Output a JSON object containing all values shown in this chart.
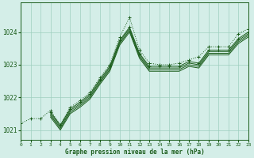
{
  "bg_color": "#d4eee8",
  "grid_color": "#9ecfbf",
  "line_color": "#1a5c1a",
  "xlabel": "Graphe pression niveau de la mer (hPa)",
  "xlim": [
    0,
    23
  ],
  "ylim": [
    1020.7,
    1024.9
  ],
  "yticks": [
    1021,
    1022,
    1023,
    1024
  ],
  "xticks": [
    0,
    1,
    2,
    3,
    4,
    5,
    6,
    7,
    8,
    9,
    10,
    11,
    12,
    13,
    14,
    15,
    16,
    17,
    18,
    19,
    20,
    21,
    22,
    23
  ],
  "series": [
    {
      "x": [
        0,
        1,
        2,
        3,
        4,
        5,
        6,
        7,
        8,
        9,
        10,
        11,
        12,
        13,
        14,
        15,
        16,
        17,
        18,
        19,
        20,
        21,
        22,
        23
      ],
      "y": [
        1021.2,
        1021.35,
        1021.35,
        1021.6,
        1021.15,
        1021.7,
        1021.9,
        1022.15,
        1022.6,
        1023.0,
        1023.85,
        1024.45,
        1023.45,
        1023.05,
        1023.0,
        1023.0,
        1023.05,
        1023.15,
        1023.25,
        1023.55,
        1023.55,
        1023.55,
        1023.95,
        1024.1
      ],
      "style": "dotted",
      "marker": "+"
    },
    {
      "x": [
        3,
        4,
        5,
        6,
        7,
        8,
        9,
        10,
        11,
        12,
        13,
        14,
        15,
        16,
        17,
        18,
        19,
        20,
        21,
        22,
        23
      ],
      "y": [
        1021.55,
        1021.15,
        1021.65,
        1021.85,
        1022.1,
        1022.55,
        1022.95,
        1023.75,
        1024.15,
        1023.35,
        1022.95,
        1022.95,
        1022.95,
        1022.95,
        1023.1,
        1023.05,
        1023.45,
        1023.45,
        1023.45,
        1023.8,
        1024.0
      ],
      "style": "solid",
      "marker": "+"
    },
    {
      "x": [
        3,
        4,
        5,
        6,
        7,
        8,
        9,
        10,
        11,
        12,
        13,
        14,
        15,
        16,
        17,
        18,
        19,
        20,
        21,
        22,
        23
      ],
      "y": [
        1021.5,
        1021.1,
        1021.6,
        1021.8,
        1022.05,
        1022.5,
        1022.9,
        1023.7,
        1024.1,
        1023.3,
        1022.9,
        1022.9,
        1022.9,
        1022.9,
        1023.05,
        1023.0,
        1023.4,
        1023.4,
        1023.4,
        1023.75,
        1023.95
      ],
      "style": "solid",
      "marker": null
    },
    {
      "x": [
        3,
        4,
        5,
        6,
        7,
        8,
        9,
        10,
        11,
        12,
        13,
        14,
        15,
        16,
        17,
        18,
        19,
        20,
        21,
        22,
        23
      ],
      "y": [
        1021.45,
        1021.05,
        1021.55,
        1021.75,
        1022.0,
        1022.45,
        1022.85,
        1023.65,
        1024.05,
        1023.25,
        1022.85,
        1022.85,
        1022.85,
        1022.85,
        1023.0,
        1022.95,
        1023.35,
        1023.35,
        1023.35,
        1023.7,
        1023.9
      ],
      "style": "solid",
      "marker": null
    },
    {
      "x": [
        3,
        4,
        5,
        6,
        7,
        8,
        9,
        10,
        11,
        12,
        13,
        14,
        15,
        16,
        17,
        18,
        19,
        20,
        21,
        22,
        23
      ],
      "y": [
        1021.4,
        1021.0,
        1021.5,
        1021.7,
        1021.95,
        1022.4,
        1022.8,
        1023.6,
        1024.0,
        1023.2,
        1022.8,
        1022.8,
        1022.8,
        1022.8,
        1022.95,
        1022.9,
        1023.3,
        1023.3,
        1023.3,
        1023.65,
        1023.85
      ],
      "style": "solid",
      "marker": null
    }
  ]
}
